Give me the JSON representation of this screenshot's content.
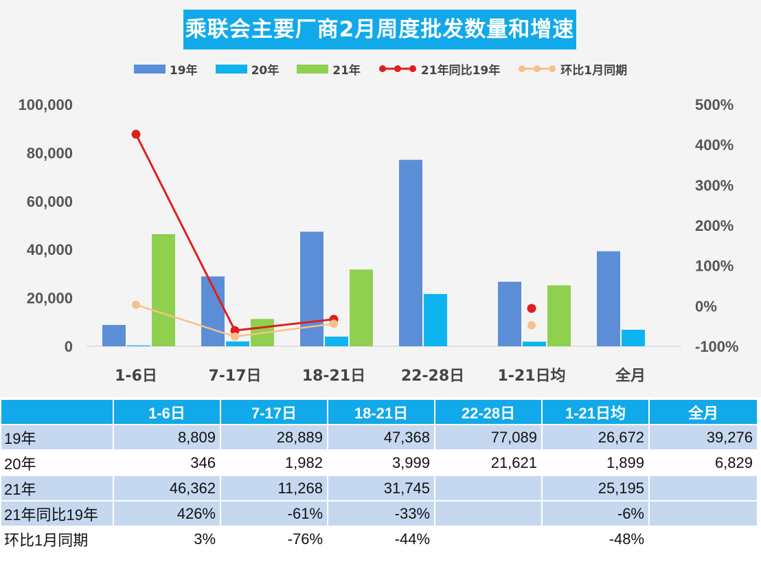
{
  "chart_data": {
    "type": "bar",
    "title": "乘联会主要厂商2月周度批发数量和增速",
    "categories": [
      "1-6日",
      "7-17日",
      "18-21日",
      "22-28日",
      "1-21日均",
      "全月"
    ],
    "series": [
      {
        "name": "19年",
        "kind": "bar",
        "axis": "left",
        "color": "#5b8ed6",
        "values": [
          8809,
          28889,
          47368,
          77089,
          26672,
          39276
        ]
      },
      {
        "name": "20年",
        "kind": "bar",
        "axis": "left",
        "color": "#0eb4f0",
        "values": [
          346,
          1982,
          3999,
          21621,
          1899,
          6829
        ]
      },
      {
        "name": "21年",
        "kind": "bar",
        "axis": "left",
        "color": "#8fd14f",
        "values": [
          46362,
          11268,
          31745,
          null,
          25195,
          null
        ]
      },
      {
        "name": "21年同比19年",
        "kind": "line",
        "axis": "right",
        "color": "#e01e1e",
        "values": [
          426,
          -61,
          -33,
          null,
          -6,
          null
        ]
      },
      {
        "name": "环比1月同期",
        "kind": "line",
        "axis": "right",
        "color": "#f6c08a",
        "values": [
          3,
          -76,
          -44,
          null,
          -48,
          null
        ]
      }
    ],
    "left_axis": {
      "ylim": [
        0,
        100000
      ],
      "ticks": [
        "0",
        "20,000",
        "40,000",
        "60,000",
        "80,000",
        "100,000"
      ]
    },
    "right_axis": {
      "ylim": [
        -100,
        500
      ],
      "ticks": [
        "-100%",
        "0%",
        "100%",
        "200%",
        "300%",
        "400%",
        "500%"
      ]
    },
    "grid": false,
    "legend_position": "top"
  },
  "table": {
    "headers": [
      "",
      "1-6日",
      "7-17日",
      "18-21日",
      "22-28日",
      "1-21日均",
      "全月"
    ],
    "rows": [
      {
        "label": "19年",
        "cells": [
          "8,809",
          "28,889",
          "47,368",
          "77,089",
          "26,672",
          "39,276"
        ]
      },
      {
        "label": "20年",
        "cells": [
          "346",
          "1,982",
          "3,999",
          "21,621",
          "1,899",
          "6,829"
        ]
      },
      {
        "label": "21年",
        "cells": [
          "46,362",
          "11,268",
          "31,745",
          "",
          "25,195",
          ""
        ]
      },
      {
        "label": "21年同比19年",
        "cells": [
          "426%",
          "-61%",
          "-33%",
          "",
          "-6%",
          ""
        ]
      },
      {
        "label": "环比1月同期",
        "cells": [
          "3%",
          "-76%",
          "-44%",
          "",
          "-48%",
          ""
        ]
      }
    ]
  }
}
